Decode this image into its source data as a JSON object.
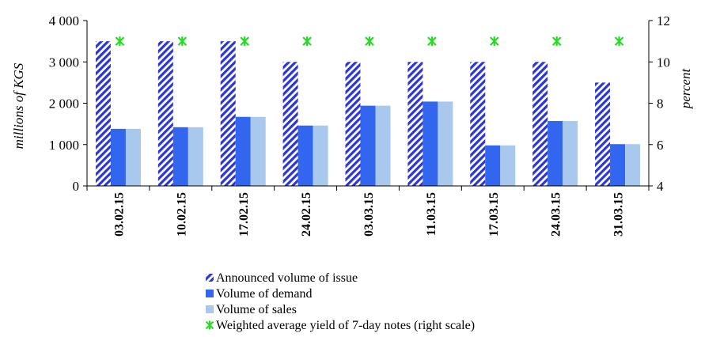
{
  "chart_data": {
    "type": "bar",
    "categories": [
      "03.02.15",
      "10.02.15",
      "17.02.15",
      "24.02.15",
      "03.03.15",
      "11.03.15",
      "17.03.15",
      "24.03.15",
      "31.03.15"
    ],
    "series": [
      {
        "name": "Announced volume of issue",
        "kind": "bar",
        "axis": "left",
        "color": "#2b35d8",
        "pattern": "diagonal-stripes",
        "values": [
          3500,
          3500,
          3500,
          3000,
          3000,
          3000,
          3000,
          3000,
          2500
        ]
      },
      {
        "name": "Volume of demand",
        "kind": "bar",
        "axis": "left",
        "color": "#3366ee",
        "values": [
          1380,
          1420,
          1670,
          1460,
          1940,
          2040,
          980,
          1570,
          1010
        ]
      },
      {
        "name": "Volume of sales",
        "kind": "bar",
        "axis": "left",
        "color": "#a8c8ee",
        "values": [
          1380,
          1420,
          1670,
          1460,
          1940,
          2040,
          980,
          1570,
          1010
        ]
      },
      {
        "name": "Weighted average yield of 7-day notes (right scale)",
        "kind": "marker",
        "axis": "right",
        "color": "#22dd22",
        "marker": "asterisk",
        "values": [
          11,
          11,
          11,
          11,
          11,
          11,
          11,
          11,
          11
        ]
      }
    ],
    "ylabel": "millions of KGS",
    "y2label": "percent",
    "ylim": [
      0,
      4000
    ],
    "y2lim": [
      4,
      12
    ],
    "yticks": [
      "0",
      "1 000",
      "2 000",
      "3 000",
      "4 000"
    ],
    "y2ticks": [
      "4",
      "6",
      "8",
      "10",
      "12"
    ],
    "legend_position": "bottom"
  }
}
